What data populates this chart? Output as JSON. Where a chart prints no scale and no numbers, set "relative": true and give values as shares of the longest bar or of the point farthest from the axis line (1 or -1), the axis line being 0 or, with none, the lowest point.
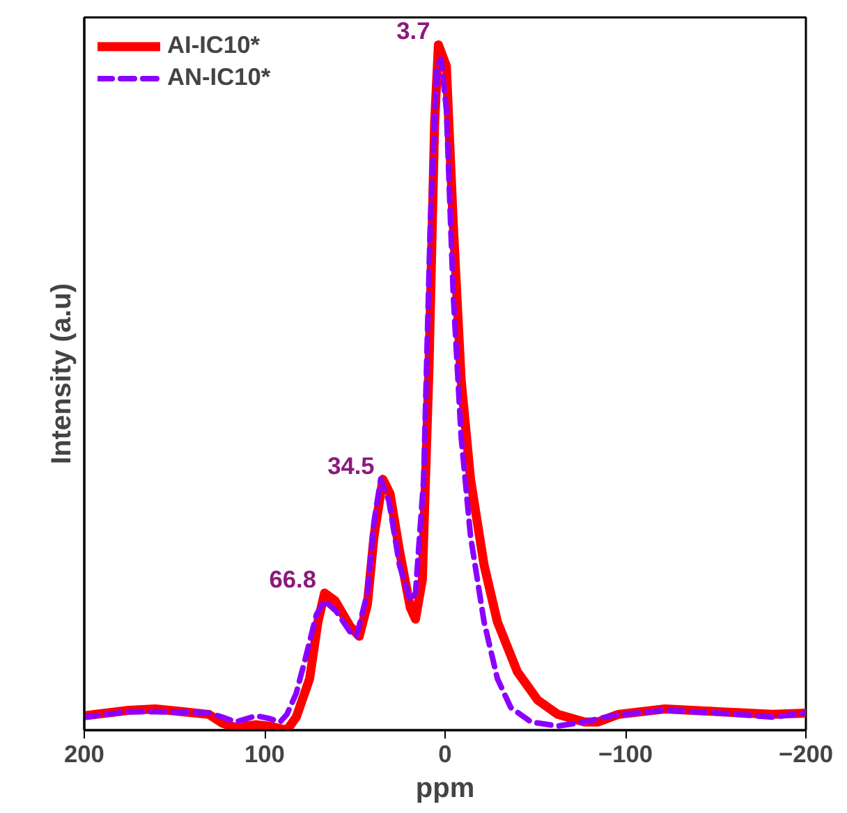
{
  "chart_data": {
    "type": "line",
    "relative": true,
    "xlabel": "ppm",
    "ylabel": "Intensity (a.u)",
    "xlim": [
      200,
      -200
    ],
    "xticks": [
      200,
      100,
      0,
      -100,
      -200
    ],
    "tick_labels": "x",
    "grid": false,
    "legend": "top left",
    "series": [
      {
        "name": "AI-IC10*",
        "color": "#ff0000",
        "line_style": "solid",
        "x": [
          200,
          175.5,
          160.6,
          130.9,
          123.4,
          116,
          104.8,
          97.4,
          87.7,
          82.5,
          75.1,
          70.5,
          66.8,
          61.0,
          52.8,
          47.6,
          43.1,
          39.4,
          34.5,
          30.5,
          25.3,
          19.3,
          16.4,
          12.6,
          8.9,
          5.8,
          3.7,
          -0.7,
          -4.5,
          -8.9,
          -14.1,
          -21.6,
          -29.0,
          -40.1,
          -51.3,
          -62.5,
          -77.3,
          -84.8,
          -95.9,
          -121.9,
          -151.7,
          -181.4,
          -200
        ],
        "values": [
          0.021,
          0.029,
          0.031,
          0.023,
          0.01,
          0.004,
          0.008,
          0.006,
          0.0,
          0.019,
          0.075,
          0.158,
          0.2,
          0.189,
          0.152,
          0.137,
          0.183,
          0.283,
          0.366,
          0.345,
          0.262,
          0.179,
          0.162,
          0.22,
          0.532,
          0.886,
          1.0,
          0.969,
          0.74,
          0.511,
          0.366,
          0.241,
          0.158,
          0.085,
          0.044,
          0.023,
          0.012,
          0.012,
          0.023,
          0.031,
          0.027,
          0.023,
          0.025
        ]
      },
      {
        "name": "AN-IC10*",
        "color": "#8b00ff",
        "line_style": "dashed",
        "x": [
          200,
          175.5,
          160.6,
          130.9,
          123.4,
          116,
          104.8,
          97.4,
          91.4,
          87.7,
          82.5,
          77.3,
          71.4,
          66.9,
          60.2,
          52.8,
          49.1,
          43.1,
          39.4,
          35.7,
          31.2,
          25.3,
          19.3,
          16.4,
          11.9,
          8.2,
          4.5,
          2.2,
          -0.7,
          -4.5,
          -8.9,
          -14.1,
          -21.6,
          -29.0,
          -36.4,
          -47.6,
          -62.5,
          -77.3,
          -92.2,
          -121.9,
          -151.7,
          -181.4,
          -200
        ],
        "values": [
          0.019,
          0.027,
          0.027,
          0.025,
          0.019,
          0.012,
          0.021,
          0.017,
          0.012,
          0.023,
          0.054,
          0.106,
          0.168,
          0.189,
          0.173,
          0.144,
          0.137,
          0.2,
          0.304,
          0.366,
          0.335,
          0.241,
          0.189,
          0.2,
          0.366,
          0.74,
          0.969,
          0.979,
          0.906,
          0.636,
          0.428,
          0.283,
          0.158,
          0.075,
          0.033,
          0.012,
          0.006,
          0.012,
          0.021,
          0.029,
          0.025,
          0.019,
          0.025
        ]
      }
    ],
    "annotations": [
      {
        "text": "3.7",
        "x": 3.7,
        "y": 1.0
      },
      {
        "text": "34.5",
        "x": 34.5,
        "y": 0.366
      },
      {
        "text": "66.8",
        "x": 66.8,
        "y": 0.2
      }
    ]
  }
}
